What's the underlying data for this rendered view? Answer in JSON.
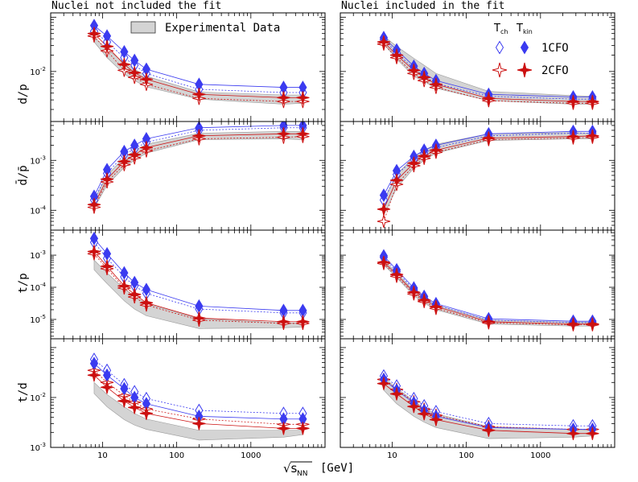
{
  "chart_data": {
    "type": "line",
    "x_label": "[GeV]",
    "x_label_symbol": "√s",
    "x_label_subscript": "NN",
    "x_range": [
      2,
      10000
    ],
    "x_ticks": [
      {
        "value": 10,
        "label": "10"
      },
      {
        "value": 100,
        "label": "100"
      },
      {
        "value": 1000,
        "label": "1000"
      }
    ],
    "energies": [
      7.7,
      11.5,
      19.6,
      27,
      39,
      200,
      2760,
      5020
    ],
    "columns": [
      {
        "key": "left",
        "title": "Nuclei not included the fit"
      },
      {
        "key": "right",
        "title": "Nuclei included in the fit"
      }
    ],
    "legend": {
      "box_label": "Experimental Data",
      "header_tch": "T",
      "header_tch_sub": "ch",
      "header_tkin": "T",
      "header_tkin_sub": "kin",
      "entries": [
        {
          "label": "1CFO",
          "color": "#3b3bf0"
        },
        {
          "label": "2CFO",
          "color": "#cc1111"
        }
      ]
    },
    "colors": {
      "blue": "#3b3bf0",
      "red": "#cc1111",
      "band": "#d4d4d4",
      "band_edge": "#999999",
      "axis": "#000000"
    },
    "rows": [
      {
        "key": "d_p",
        "ylabel": "d/p",
        "yrange": [
          0.0012,
          0.12
        ],
        "ticks": [
          {
            "value": 0.01,
            "mant": "10",
            "exp": "-2"
          }
        ],
        "left": {
          "blue_kin": [
            0.07,
            0.045,
            0.023,
            0.016,
            0.011,
            0.0058,
            0.0051,
            0.0051
          ],
          "blue_ch": [
            0.055,
            0.035,
            0.018,
            0.013,
            0.0092,
            0.0047,
            0.0041,
            0.0041
          ],
          "red_kin": [
            0.05,
            0.029,
            0.0135,
            0.0095,
            0.0072,
            0.0038,
            0.0033,
            0.0033
          ],
          "red_ch": [
            0.045,
            0.024,
            0.0105,
            0.0078,
            0.0058,
            0.0032,
            0.0028,
            0.0028
          ],
          "band_low": [
            0.035,
            0.018,
            0.009,
            0.0068,
            0.0052,
            0.0031,
            0.0025,
            0.0026
          ],
          "band_high": [
            0.042,
            0.026,
            0.0145,
            0.011,
            0.0082,
            0.0042,
            0.0037,
            0.0037
          ]
        },
        "right": {
          "blue_kin": [
            0.042,
            0.025,
            0.0125,
            0.0092,
            0.0068,
            0.0038,
            0.0034,
            0.0034
          ],
          "blue_ch": [
            0.039,
            0.022,
            0.0112,
            0.0082,
            0.006,
            0.0035,
            0.0031,
            0.0031
          ],
          "red_kin": [
            0.035,
            0.02,
            0.0105,
            0.0078,
            0.0058,
            0.0032,
            0.0028,
            0.0028
          ],
          "red_ch": [
            0.032,
            0.018,
            0.0092,
            0.0068,
            0.0051,
            0.0029,
            0.0026,
            0.0026
          ],
          "band_low": [
            0.032,
            0.017,
            0.0082,
            0.0065,
            0.0049,
            0.0029,
            0.0025,
            0.0025
          ],
          "band_high": [
            0.045,
            0.029,
            0.0175,
            0.013,
            0.0092,
            0.0043,
            0.0036,
            0.0035
          ]
        }
      },
      {
        "key": "dbar_pbar",
        "ylabel": "d̄/p̄",
        "yrange": [
          4e-05,
          0.006
        ],
        "ticks": [
          {
            "value": 0.001,
            "mant": "10",
            "exp": "-3"
          },
          {
            "value": 0.0001,
            "mant": "10",
            "exp": "-4"
          }
        ],
        "left": {
          "blue_kin": [
            0.00019,
            0.00065,
            0.0015,
            0.002,
            0.0027,
            0.0045,
            0.005,
            0.005
          ],
          "blue_ch": [
            0.00016,
            0.00055,
            0.0013,
            0.0017,
            0.0023,
            0.004,
            0.0045,
            0.0045
          ],
          "red_kin": [
            0.00013,
            0.00042,
            0.00095,
            0.0013,
            0.0018,
            0.0031,
            0.0034,
            0.0034
          ],
          "red_ch": [
            0.000115,
            0.00037,
            0.00082,
            0.00112,
            0.00155,
            0.0027,
            0.0029,
            0.003
          ],
          "band_low": [
            0.00011,
            0.00032,
            0.00072,
            0.001,
            0.0014,
            0.0026,
            0.0027,
            0.0026
          ],
          "band_high": [
            0.00016,
            0.0005,
            0.00115,
            0.00155,
            0.0021,
            0.0035,
            0.0038,
            0.0038
          ]
        },
        "right": {
          "blue_kin": [
            0.0002,
            0.00062,
            0.0012,
            0.0016,
            0.002,
            0.0034,
            0.0038,
            0.0038
          ],
          "blue_ch": [
            0.00016,
            0.00052,
            0.00105,
            0.0014,
            0.0018,
            0.0031,
            0.0035,
            0.0035
          ],
          "red_kin": [
            0.000105,
            0.0004,
            0.00088,
            0.00122,
            0.0016,
            0.0028,
            0.003,
            0.0031
          ],
          "red_ch": [
            6e-05,
            0.00033,
            0.00078,
            0.0011,
            0.00145,
            0.0026,
            0.0028,
            0.0029
          ],
          "band_low": [
            8e-05,
            0.00028,
            0.0007,
            0.001,
            0.0014,
            0.0025,
            0.0027,
            0.0027
          ],
          "band_high": [
            0.00016,
            0.00052,
            0.00118,
            0.0016,
            0.0021,
            0.0034,
            0.0036,
            0.0035
          ]
        }
      },
      {
        "key": "t_p",
        "ylabel": "t/p",
        "yrange": [
          2.5e-06,
          0.006
        ],
        "ticks": [
          {
            "value": 0.001,
            "mant": "10",
            "exp": "-3"
          },
          {
            "value": 0.0001,
            "mant": "10",
            "exp": "-4"
          },
          {
            "value": 1e-05,
            "mant": "10",
            "exp": "-5"
          }
        ],
        "left": {
          "blue_kin": [
            0.0033,
            0.0011,
            0.00028,
            0.00014,
            8.5e-05,
            2.6e-05,
            1.9e-05,
            1.9e-05
          ],
          "blue_ch": [
            0.0025,
            0.0008,
            0.00021,
            0.00011,
            6.5e-05,
            2.1e-05,
            1.6e-05,
            1.6e-05
          ],
          "red_kin": [
            0.0013,
            0.00045,
            0.00011,
            6e-05,
            3.3e-05,
            1.1e-05,
            8.5e-06,
            8.5e-06
          ],
          "red_ch": [
            0.0011,
            0.00038,
            9.5e-05,
            5e-05,
            2.8e-05,
            9.5e-06,
            7.5e-06,
            7.5e-06
          ],
          "band_low": [
            0.00035,
            0.00013,
            3.8e-05,
            2.1e-05,
            1.3e-05,
            5.2e-06,
            5.5e-06,
            5.8e-06
          ],
          "band_high": [
            0.0007,
            0.00028,
            9e-05,
            5.2e-05,
            3.1e-05,
            1.05e-05,
            7.8e-06,
            7.8e-06
          ]
        },
        "right": {
          "blue_kin": [
            0.00095,
            0.00035,
            9.5e-05,
            5.2e-05,
            3.1e-05,
            1.05e-05,
            8.8e-06,
            8.8e-06
          ],
          "blue_ch": [
            0.00085,
            0.00031,
            8.5e-05,
            4.6e-05,
            2.8e-05,
            9.5e-06,
            8e-06,
            8e-06
          ],
          "red_kin": [
            0.0006,
            0.00025,
            7e-05,
            4e-05,
            2.5e-05,
            8.5e-06,
            7.2e-06,
            7.2e-06
          ],
          "red_ch": [
            0.00055,
            0.00022,
            6.2e-05,
            3.6e-05,
            2.2e-05,
            7.8e-06,
            6.8e-06,
            6.8e-06
          ],
          "band_low": [
            0.0005,
            0.0002,
            5.5e-05,
            3.2e-05,
            2e-05,
            7.2e-06,
            6.2e-06,
            6.2e-06
          ],
          "band_high": [
            0.0007,
            0.00028,
            7.8e-05,
            4.5e-05,
            2.8e-05,
            9.5e-06,
            8.2e-06,
            8.2e-06
          ]
        }
      },
      {
        "key": "t_d",
        "ylabel": "t/d",
        "yrange": [
          0.001,
          0.15
        ],
        "ticks": [
          {
            "value": 0.01,
            "mant": "10",
            "exp": "-2"
          },
          {
            "value": 0.001,
            "mant": "10",
            "exp": "-3"
          }
        ],
        "left": {
          "blue_kin": [
            0.048,
            0.028,
            0.015,
            0.01,
            0.0075,
            0.0042,
            0.0037,
            0.0037
          ],
          "blue_ch": [
            0.058,
            0.035,
            0.018,
            0.013,
            0.0095,
            0.0055,
            0.0048,
            0.0048
          ],
          "red_kin": [
            0.028,
            0.016,
            0.0085,
            0.0063,
            0.0048,
            0.003,
            0.0024,
            0.0024
          ],
          "red_ch": [
            0.035,
            0.02,
            0.011,
            0.008,
            0.0059,
            0.0037,
            0.0029,
            0.0029
          ],
          "band_low": [
            0.012,
            0.0065,
            0.0036,
            0.0028,
            0.0023,
            0.0014,
            0.0016,
            0.0018
          ],
          "band_high": [
            0.02,
            0.0115,
            0.0065,
            0.0048,
            0.0037,
            0.0022,
            0.0022,
            0.0022
          ]
        },
        "right": {
          "blue_kin": [
            0.023,
            0.014,
            0.0078,
            0.0055,
            0.0042,
            0.0025,
            0.0023,
            0.0023
          ],
          "blue_ch": [
            0.027,
            0.017,
            0.0095,
            0.0068,
            0.0052,
            0.003,
            0.0027,
            0.0027
          ],
          "red_kin": [
            0.019,
            0.0118,
            0.0066,
            0.0047,
            0.0036,
            0.0022,
            0.0019,
            0.0019
          ],
          "red_ch": [
            0.023,
            0.0145,
            0.0082,
            0.0058,
            0.0044,
            0.0026,
            0.0023,
            0.0023
          ],
          "band_low": [
            0.014,
            0.0075,
            0.0042,
            0.0032,
            0.0025,
            0.0015,
            0.0016,
            0.0017
          ],
          "band_high": [
            0.025,
            0.0155,
            0.0085,
            0.0062,
            0.0047,
            0.0026,
            0.0023,
            0.0022
          ]
        }
      }
    ]
  }
}
